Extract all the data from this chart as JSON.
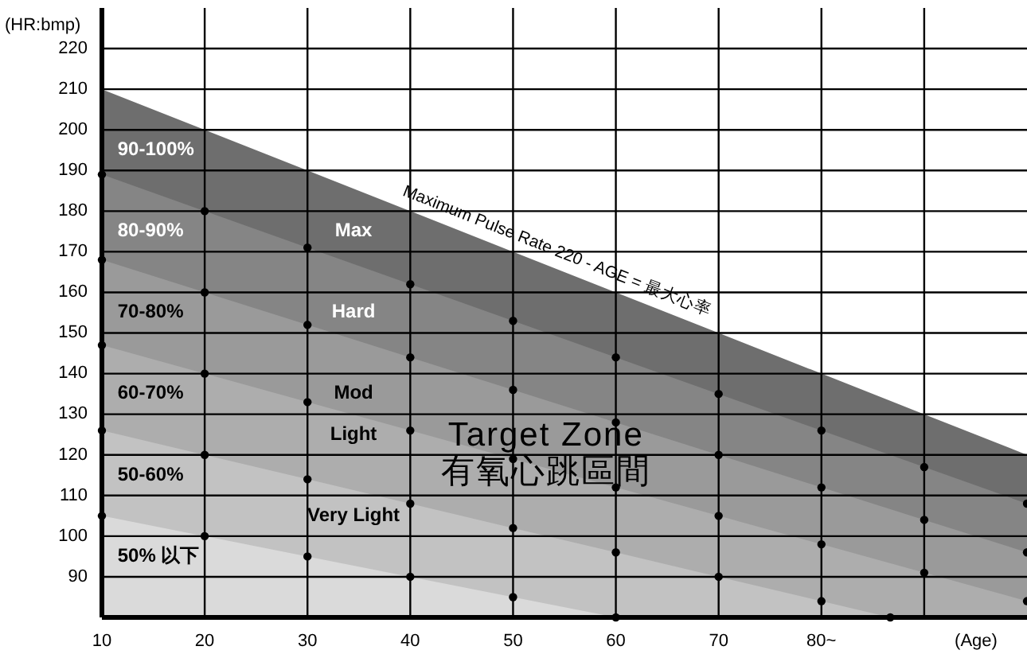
{
  "chart_data": {
    "type": "area",
    "xlabel": "(Age)",
    "ylabel": "(HR:bmp)",
    "xlim": [
      10,
      100
    ],
    "xticks": [
      10,
      20,
      30,
      40,
      50,
      60,
      70,
      {
        "value": 80,
        "label": "80~"
      },
      {
        "value": 90,
        "label": null
      }
    ],
    "ylim": [
      80,
      230
    ],
    "yticks": [
      90,
      100,
      110,
      120,
      130,
      140,
      150,
      160,
      170,
      180,
      190,
      200,
      210,
      220
    ],
    "grid": true,
    "series": [
      {
        "color": "#6e6e6e",
        "marker": "none",
        "x": [
          10,
          20,
          30,
          40,
          50,
          60,
          70,
          80,
          90,
          100
        ],
        "values": [
          210,
          200,
          190,
          180,
          170,
          160,
          150,
          140,
          130,
          120
        ]
      },
      {
        "color": "#858585",
        "marker": "circle",
        "x": [
          10,
          20,
          30,
          40,
          50,
          60,
          70,
          80,
          90,
          100
        ],
        "values": [
          189,
          180,
          171,
          162,
          153,
          144,
          135,
          126,
          117,
          108
        ]
      },
      {
        "color": "#9a9a9a",
        "marker": "circle",
        "x": [
          10,
          20,
          30,
          40,
          50,
          60,
          70,
          80,
          90,
          100
        ],
        "values": [
          168,
          160,
          152,
          144,
          136,
          128,
          120,
          112,
          104,
          96
        ]
      },
      {
        "color": "#adadad",
        "marker": "circle",
        "x": [
          10,
          20,
          30,
          40,
          50,
          60,
          70,
          80,
          90,
          100
        ],
        "values": [
          147,
          140,
          133,
          126,
          119,
          112,
          105,
          98,
          91,
          84
        ]
      },
      {
        "color": "#c2c2c2",
        "marker": "circle",
        "x": [
          10,
          20,
          30,
          40,
          50,
          60,
          70,
          80,
          86.7
        ],
        "values": [
          126,
          120,
          114,
          108,
          102,
          96,
          90,
          84,
          80
        ]
      },
      {
        "color": "#dadada",
        "marker": "circle",
        "x": [
          10,
          20,
          30,
          40,
          50,
          60
        ],
        "values": [
          105,
          100,
          95,
          90,
          85,
          80
        ]
      }
    ],
    "annotations": [
      "90-100%",
      "80-90%",
      "70-80%",
      "60-70%",
      "50-60%",
      "50% 以下",
      "Max",
      "Hard",
      "Mod",
      "Light",
      "Very Light",
      "Target Zone",
      "有氧心跳區間",
      "Maximum Pulse Rate 220 - AGE = 最大心率"
    ]
  }
}
